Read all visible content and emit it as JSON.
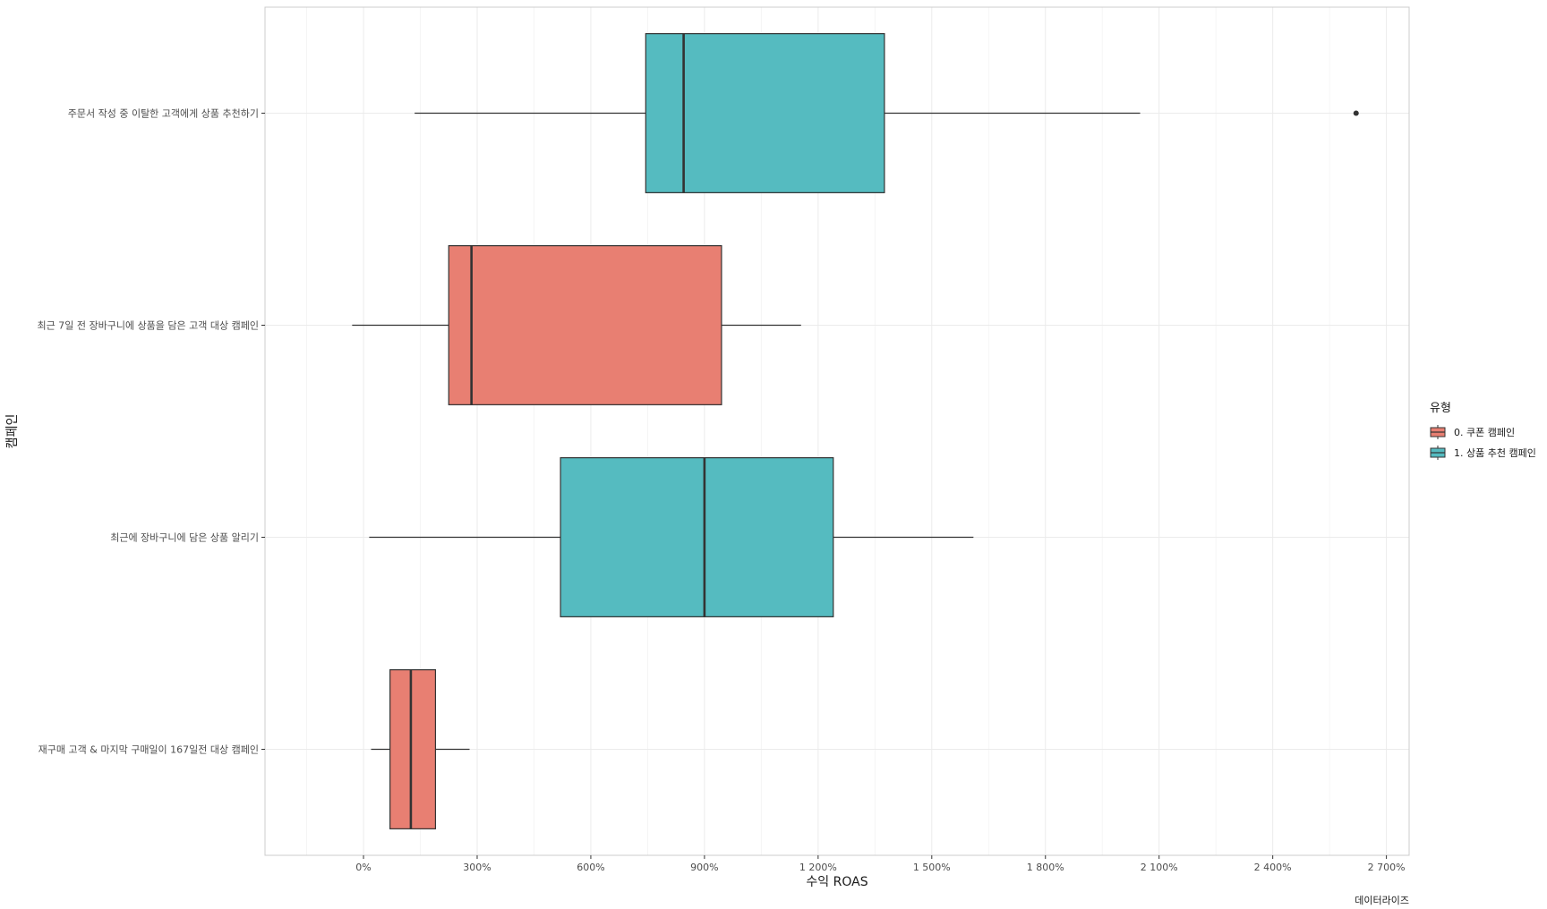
{
  "chart_data": {
    "type": "boxplot",
    "orientation": "horizontal",
    "xlabel": "수익 ROAS",
    "ylabel": "캠페인",
    "caption": "데이터라이즈",
    "xlim": [
      -260,
      2760
    ],
    "x_ticks": [
      0,
      300,
      600,
      900,
      1200,
      1500,
      1800,
      2100,
      2400,
      2700
    ],
    "x_tick_labels": [
      "0%",
      "300%",
      "600%",
      "900%",
      "1 200%",
      "1 500%",
      "1 800%",
      "2 100%",
      "2 400%",
      "2 700%"
    ],
    "grid": true,
    "legend": {
      "title": "유형",
      "position": "right",
      "entries": [
        {
          "label": "0. 쿠폰 캠페인",
          "color": "#E87F72"
        },
        {
          "label": "1. 상품 추천 캠페인",
          "color": "#55BBC0"
        }
      ]
    },
    "categories": [
      {
        "label": "주문서 작성 중 이탈한 고객에게 상품 추천하기",
        "type_index": 1,
        "whisker_low": 135,
        "q1": 745,
        "median": 845,
        "q3": 1375,
        "whisker_high": 2050,
        "outliers": [
          2620
        ]
      },
      {
        "label": "최근 7일 전 장바구니에 상품을 담은 고객 대상 캠페인",
        "type_index": 0,
        "whisker_low": -30,
        "q1": 225,
        "median": 285,
        "q3": 945,
        "whisker_high": 1155,
        "outliers": []
      },
      {
        "label": "최근에 장바구니에 담은 상품 알리기",
        "type_index": 1,
        "whisker_low": 15,
        "q1": 520,
        "median": 900,
        "q3": 1240,
        "whisker_high": 1610,
        "outliers": []
      },
      {
        "label": "재구매 고객  & 마지막 구매일이 167일전 대상 캠페인",
        "type_index": 0,
        "whisker_low": 20,
        "q1": 70,
        "median": 125,
        "q3": 190,
        "whisker_high": 280,
        "outliers": []
      }
    ]
  }
}
